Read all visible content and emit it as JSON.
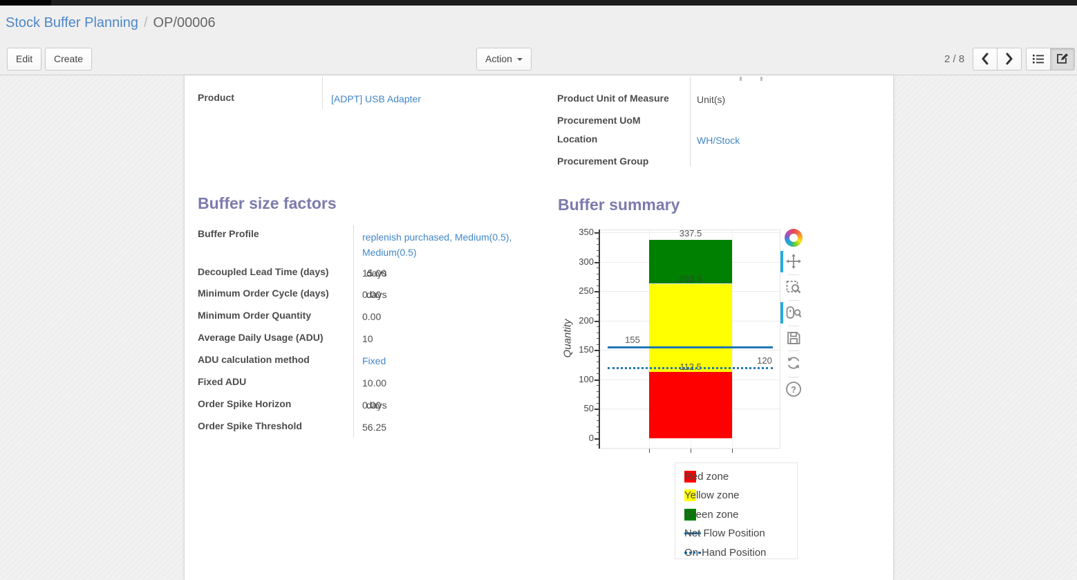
{
  "breadcrumb": {
    "parent": "Stock Buffer Planning",
    "separator": "/",
    "current": "OP/00006"
  },
  "actions": {
    "edit": "Edit",
    "create": "Create",
    "action": "Action"
  },
  "pager": {
    "text": "2 / 8"
  },
  "icons": [
    "chevron-left-icon",
    "chevron-right-icon",
    "list-view-icon",
    "form-view-icon",
    "caret-down-icon",
    "bokeh-logo",
    "pan-icon",
    "box-zoom-icon",
    "wheel-zoom-icon",
    "save-icon",
    "reset-icon",
    "help-icon"
  ],
  "form": {
    "fields_left": [
      {
        "label": "Product",
        "value": "[ADPT] USB Adapter",
        "link": true
      }
    ],
    "fields_right": [
      {
        "label": "Product Unit of Measure",
        "value": "Unit(s)",
        "link": false
      },
      {
        "label": "Procurement UoM",
        "value": "",
        "link": false
      },
      {
        "label": "Location",
        "value": "WH/Stock",
        "link": true
      },
      {
        "label": "Procurement Group",
        "value": "",
        "link": false
      }
    ],
    "buffer_factors": {
      "title": "Buffer size factors",
      "rows": [
        {
          "label": "Buffer Profile",
          "value": "replenish purchased, Medium(0.5), Medium(0.5)",
          "link": true,
          "suffix": ""
        },
        {
          "label": "Decoupled Lead Time (days)",
          "value": "15.00",
          "link": false,
          "suffix": "days"
        },
        {
          "label": "Minimum Order Cycle (days)",
          "value": "0.00",
          "link": false,
          "suffix": "days"
        },
        {
          "label": "Minimum Order Quantity",
          "value": "0.00",
          "link": false,
          "suffix": ""
        },
        {
          "label": "Average Daily Usage (ADU)",
          "value": "10",
          "link": false,
          "suffix": ""
        },
        {
          "label": "ADU calculation method",
          "value": "Fixed",
          "link": true,
          "suffix": ""
        },
        {
          "label": "Fixed ADU",
          "value": "10.00",
          "link": false,
          "suffix": ""
        },
        {
          "label": "Order Spike Horizon",
          "value": "0.00",
          "link": false,
          "suffix": "days"
        },
        {
          "label": "Order Spike Threshold",
          "value": "56.25",
          "link": false,
          "suffix": ""
        }
      ]
    },
    "buffer_summary": {
      "title": "Buffer summary"
    }
  },
  "chart_data": {
    "type": "bar",
    "title": "Buffer summary",
    "xlabel": "",
    "ylabel": "Quantity",
    "ylim": [
      0,
      350
    ],
    "yticks": [
      0,
      50,
      100,
      150,
      200,
      250,
      300,
      350
    ],
    "grid": true,
    "legend_position": "below-right",
    "zones": [
      {
        "name": "Red zone",
        "from": 0,
        "to": 112.5,
        "color": "#ff0000",
        "label": "112.5"
      },
      {
        "name": "Yellow zone",
        "from": 112.5,
        "to": 262.5,
        "color": "#ffff00",
        "label": "262.5"
      },
      {
        "name": "Green zone",
        "from": 262.5,
        "to": 337.5,
        "color": "#008000",
        "label": "337.5"
      }
    ],
    "lines": [
      {
        "name": "Net Flow Position",
        "value": 155,
        "style": "solid",
        "color": "#1f77b4",
        "label": "155",
        "label_side": "left"
      },
      {
        "name": "On-Hand Position",
        "value": 120,
        "style": "dotted",
        "color": "#1f77b4",
        "label": "120",
        "label_side": "right"
      }
    ],
    "legend": [
      {
        "label": "Red zone",
        "type": "swatch",
        "color": "#ff0000"
      },
      {
        "label": "Yellow zone",
        "type": "swatch",
        "color": "#ffff00"
      },
      {
        "label": "Green zone",
        "type": "swatch",
        "color": "#008000"
      },
      {
        "label": "Net Flow Position",
        "type": "solid-line",
        "color": "#1f77b4"
      },
      {
        "label": "On-Hand Position",
        "type": "dotted-line",
        "color": "#1f77b4"
      }
    ],
    "toolbar": [
      "pan",
      "box-zoom",
      "wheel-zoom",
      "save",
      "reset",
      "help"
    ],
    "active_tools": [
      "pan",
      "wheel-zoom"
    ]
  }
}
